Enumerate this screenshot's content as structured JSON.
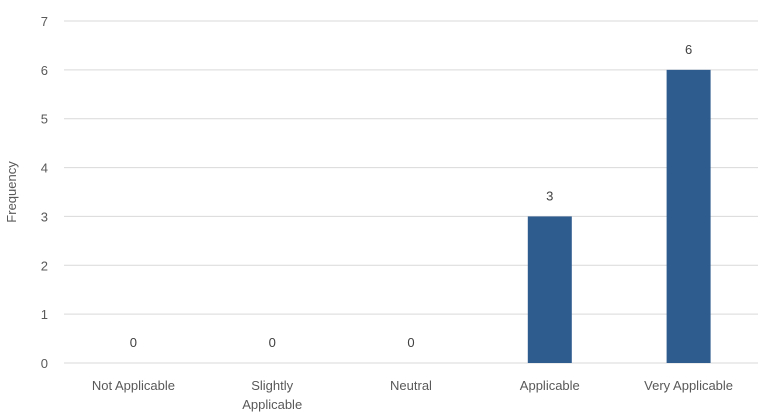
{
  "chart_data": {
    "type": "bar",
    "title": "",
    "xlabel": "",
    "ylabel": "Frequency",
    "ylim": [
      0,
      7
    ],
    "yticks": [
      0,
      1,
      2,
      3,
      4,
      5,
      6,
      7
    ],
    "categories": [
      [
        "Not Applicable"
      ],
      [
        "Slightly",
        "Applicable"
      ],
      [
        "Neutral"
      ],
      [
        "Applicable"
      ],
      [
        "Very Applicable"
      ]
    ],
    "values": [
      0,
      0,
      0,
      3,
      6
    ],
    "data_labels": [
      "0",
      "0",
      "0",
      "3",
      "6"
    ],
    "grid": true,
    "legend": "none",
    "colors": {
      "bar": "#2f5c8f",
      "grid": "#d9d9d9",
      "text": "#595959"
    }
  }
}
